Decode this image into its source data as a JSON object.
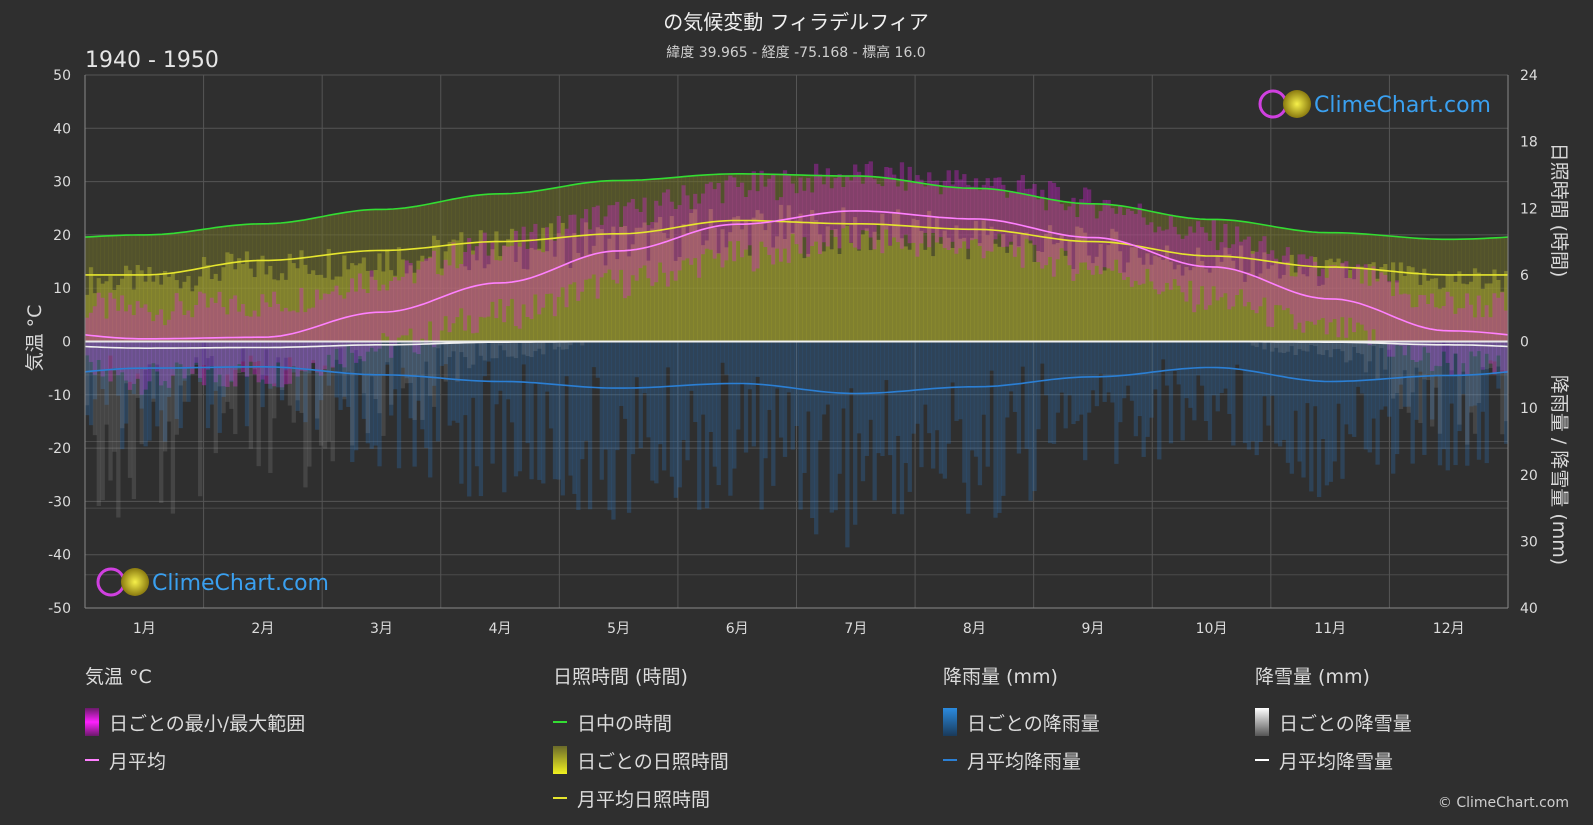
{
  "header": {
    "title": "の気候変動 フィラデルフィア",
    "subtitle": "緯度 39.965 - 経度 -75.168 - 標高 16.0",
    "period": "1940 - 1950"
  },
  "watermark": {
    "text": "ClimeChart.com"
  },
  "copyright": "© ClimeChart.com",
  "colors": {
    "background": "#2f2f2f",
    "temp_range": "#e020e0",
    "temp_avg": "#ff80ff",
    "daylight": "#33dd33",
    "sunshine_daily": "#b8b830",
    "sunshine_avg": "#e6e62e",
    "rain": "#2b7fd4",
    "snow": "#ffffff",
    "logo_blue": "#3aa0f0"
  },
  "chart_data": {
    "type": "line",
    "title": "の気候変動 フィラデルフィア",
    "months": [
      "1月",
      "2月",
      "3月",
      "4月",
      "5月",
      "6月",
      "7月",
      "8月",
      "9月",
      "10月",
      "11月",
      "12月"
    ],
    "axes": {
      "left": {
        "label": "気温 °C",
        "range": [
          -50,
          50
        ],
        "ticks": [
          "50",
          "40",
          "30",
          "20",
          "10",
          "0",
          "-10",
          "-20",
          "-30",
          "-40",
          "-50"
        ]
      },
      "right_top": {
        "label": "日照時間 (時間)",
        "range": [
          0,
          24
        ],
        "ticks": [
          "24",
          "18",
          "12",
          "6",
          "0"
        ]
      },
      "right_bottom": {
        "label": "降雨量 / 降雪量 (mm)",
        "range": [
          0,
          40
        ],
        "ticks": [
          "0",
          "10",
          "20",
          "30",
          "40"
        ]
      }
    },
    "grid": true,
    "series": [
      {
        "name": "日中の時間",
        "axis": "hours",
        "values": [
          9.6,
          10.6,
          11.9,
          13.3,
          14.5,
          15.1,
          14.9,
          13.8,
          12.4,
          11.0,
          9.8,
          9.2
        ]
      },
      {
        "name": "月平均日照時間",
        "axis": "hours",
        "values": [
          6.0,
          7.3,
          8.2,
          9.0,
          9.7,
          10.9,
          10.6,
          10.1,
          9.0,
          7.7,
          6.7,
          6.0
        ]
      },
      {
        "name": "月平均",
        "axis": "temp",
        "values": [
          0.5,
          0.8,
          5.5,
          11.0,
          17.0,
          22.0,
          24.5,
          23.0,
          19.5,
          14.0,
          8.0,
          2.0
        ]
      },
      {
        "name": "月平均降雨量",
        "axis": "precip",
        "values": [
          4.0,
          3.8,
          5.0,
          6.0,
          7.0,
          6.3,
          7.8,
          6.8,
          5.3,
          3.9,
          6.0,
          5.1
        ]
      },
      {
        "name": "月平均降雪量",
        "axis": "precip",
        "values": [
          1.0,
          0.9,
          0.5,
          0.1,
          0,
          0,
          0,
          0,
          0,
          0,
          0.1,
          0.5
        ]
      }
    ],
    "daily_temp_range": {
      "name": "日ごとの最小/最大範囲",
      "max": [
        6,
        7,
        12,
        18,
        24,
        29,
        31,
        30,
        26,
        20,
        13,
        7
      ],
      "min": [
        -7,
        -6,
        -1,
        5,
        11,
        16,
        19,
        18,
        14,
        8,
        2,
        -4
      ]
    }
  },
  "legend": {
    "temperature": {
      "title": "気温 °C",
      "items": [
        "日ごとの最小/最大範囲",
        "月平均"
      ]
    },
    "sunshine": {
      "title": "日照時間 (時間)",
      "items": [
        "日中の時間",
        "日ごとの日照時間",
        "月平均日照時間"
      ]
    },
    "rain": {
      "title": "降雨量 (mm)",
      "items": [
        "日ごとの降雨量",
        "月平均降雨量"
      ]
    },
    "snow": {
      "title": "降雪量 (mm)",
      "items": [
        "日ごとの降雪量",
        "月平均降雪量"
      ]
    }
  }
}
